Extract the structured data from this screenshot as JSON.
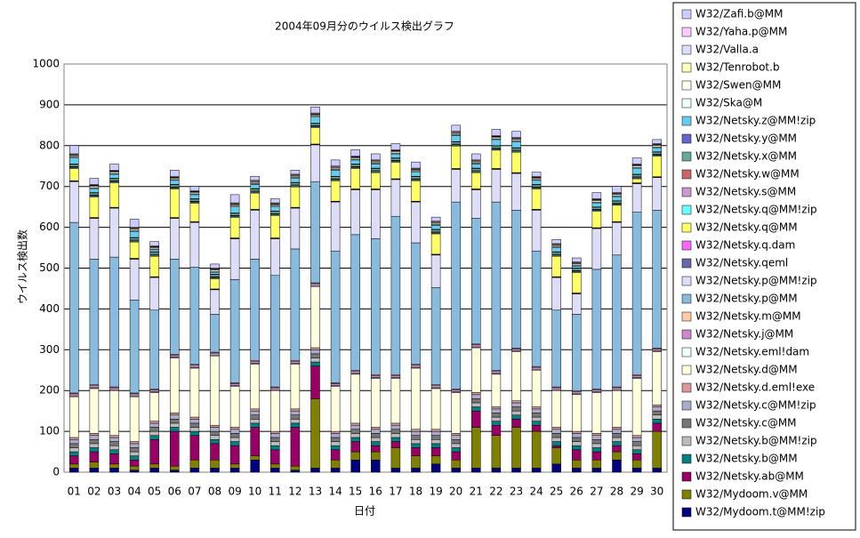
{
  "chart_data": {
    "type": "stacked_bar",
    "title": "2004年09月分のウイルス検出グラフ",
    "x_label": "日付",
    "y_label": "ウイルス検出数",
    "categories": [
      "01",
      "02",
      "03",
      "04",
      "05",
      "06",
      "07",
      "08",
      "09",
      "10",
      "11",
      "12",
      "13",
      "14",
      "15",
      "16",
      "17",
      "18",
      "19",
      "20",
      "21",
      "22",
      "23",
      "24",
      "25",
      "26",
      "27",
      "28",
      "29",
      "30"
    ],
    "ylim": [
      0,
      1000
    ],
    "yticks": [
      0,
      100,
      200,
      300,
      400,
      500,
      600,
      700,
      800,
      900,
      1000
    ],
    "grid": true,
    "series": [
      {
        "name": "W32/Zafi.b@MM",
        "color": "#ccccff",
        "values": [
          20,
          15,
          15,
          20,
          10,
          15,
          10,
          10,
          20,
          10,
          10,
          10,
          15,
          15,
          15,
          15,
          15,
          15,
          10,
          15,
          15,
          15,
          15,
          10,
          10,
          10,
          15,
          15,
          15,
          10
        ]
      },
      {
        "name": "W32/Yaha.p@MM",
        "color": "#ffccff",
        "values": [
          2,
          2,
          2,
          2,
          2,
          2,
          2,
          2,
          2,
          2,
          2,
          2,
          2,
          2,
          2,
          2,
          2,
          2,
          2,
          2,
          2,
          2,
          2,
          2,
          2,
          2,
          2,
          2,
          2,
          2
        ]
      },
      {
        "name": "W32/Valla.a",
        "color": "#ddddff",
        "values": [
          1,
          1,
          1,
          1,
          1,
          1,
          1,
          1,
          1,
          1,
          1,
          1,
          1,
          1,
          1,
          1,
          1,
          1,
          1,
          1,
          1,
          1,
          1,
          1,
          1,
          1,
          1,
          1,
          1,
          1
        ]
      },
      {
        "name": "W32/Tenrobot.b",
        "color": "#ffffbb",
        "values": [
          2,
          2,
          2,
          2,
          2,
          2,
          2,
          2,
          2,
          2,
          2,
          2,
          2,
          2,
          2,
          2,
          2,
          2,
          2,
          2,
          2,
          2,
          2,
          2,
          2,
          2,
          2,
          2,
          2,
          2
        ]
      },
      {
        "name": "W32/Swen@MM",
        "color": "#ffffee",
        "values": [
          3,
          3,
          3,
          3,
          3,
          3,
          3,
          3,
          3,
          3,
          3,
          3,
          3,
          3,
          3,
          3,
          3,
          3,
          3,
          3,
          3,
          3,
          3,
          3,
          3,
          3,
          3,
          3,
          3,
          3
        ]
      },
      {
        "name": "W32/Ska@M",
        "color": "#eeffff",
        "values": [
          2,
          2,
          2,
          2,
          2,
          2,
          2,
          2,
          2,
          2,
          2,
          2,
          2,
          2,
          2,
          2,
          2,
          2,
          2,
          2,
          2,
          2,
          2,
          2,
          2,
          2,
          2,
          2,
          2,
          2
        ]
      },
      {
        "name": "W32/Netsky.z@MM!zip",
        "color": "#66ccee",
        "values": [
          15,
          10,
          10,
          15,
          5,
          10,
          10,
          5,
          15,
          10,
          10,
          10,
          15,
          15,
          10,
          10,
          10,
          10,
          10,
          15,
          10,
          15,
          15,
          10,
          10,
          5,
          10,
          10,
          15,
          10
        ]
      },
      {
        "name": "W32/Netsky.y@MM",
        "color": "#6666cc",
        "values": [
          1,
          1,
          1,
          1,
          1,
          1,
          1,
          1,
          1,
          1,
          1,
          1,
          1,
          1,
          1,
          1,
          1,
          1,
          1,
          1,
          1,
          1,
          1,
          1,
          1,
          1,
          1,
          1,
          1,
          1
        ]
      },
      {
        "name": "W32/Netsky.x@MM",
        "color": "#66aa99",
        "values": [
          5,
          5,
          5,
          5,
          5,
          5,
          5,
          5,
          5,
          5,
          5,
          5,
          5,
          5,
          5,
          5,
          5,
          5,
          5,
          5,
          5,
          5,
          5,
          5,
          5,
          5,
          5,
          5,
          5,
          5
        ]
      },
      {
        "name": "W32/Netsky.w@MM",
        "color": "#cc6666",
        "values": [
          1,
          1,
          1,
          1,
          1,
          1,
          1,
          1,
          1,
          1,
          1,
          1,
          1,
          1,
          1,
          1,
          1,
          1,
          1,
          1,
          1,
          1,
          1,
          1,
          1,
          1,
          1,
          1,
          1,
          1
        ]
      },
      {
        "name": "W32/Netsky.s@MM",
        "color": "#cc99cc",
        "values": [
          2,
          2,
          2,
          2,
          2,
          2,
          2,
          2,
          2,
          2,
          2,
          2,
          2,
          2,
          2,
          2,
          2,
          2,
          2,
          2,
          2,
          2,
          2,
          2,
          2,
          2,
          2,
          2,
          2,
          2
        ]
      },
      {
        "name": "W32/Netsky.q@MM!zip",
        "color": "#66ffff",
        "values": [
          2,
          2,
          2,
          2,
          2,
          2,
          2,
          2,
          2,
          2,
          2,
          2,
          2,
          2,
          2,
          2,
          2,
          2,
          2,
          2,
          2,
          2,
          2,
          2,
          2,
          2,
          2,
          2,
          2,
          2
        ]
      },
      {
        "name": "W32/Netsky.q@MM",
        "color": "#ffff66",
        "values": [
          30,
          50,
          60,
          40,
          50,
          70,
          45,
          25,
          50,
          40,
          55,
          50,
          40,
          50,
          50,
          40,
          40,
          50,
          50,
          55,
          40,
          45,
          50,
          50,
          50,
          50,
          40,
          40,
          10,
          50
        ]
      },
      {
        "name": "W32/Netsky.q.dam",
        "color": "#ff66ff",
        "values": [
          1,
          1,
          1,
          1,
          1,
          1,
          1,
          1,
          1,
          1,
          1,
          1,
          1,
          1,
          1,
          1,
          1,
          1,
          1,
          1,
          1,
          1,
          1,
          1,
          1,
          1,
          1,
          1,
          1,
          1
        ]
      },
      {
        "name": "W32/Netsky.qeml",
        "color": "#6666aa",
        "values": [
          1,
          1,
          1,
          1,
          1,
          1,
          1,
          1,
          1,
          1,
          1,
          1,
          1,
          1,
          1,
          1,
          1,
          1,
          1,
          1,
          1,
          1,
          1,
          1,
          1,
          1,
          1,
          1,
          1,
          1
        ]
      },
      {
        "name": "W32/Netsky.p@MM!zip",
        "color": "#ddddf8",
        "values": [
          100,
          100,
          120,
          100,
          80,
          100,
          110,
          60,
          100,
          120,
          90,
          100,
          90,
          120,
          110,
          120,
          90,
          100,
          80,
          80,
          70,
          80,
          90,
          100,
          80,
          50,
          100,
          80,
          70,
          80
        ]
      },
      {
        "name": "W32/Netsky.p@MM",
        "color": "#88bbdd",
        "values": [
          418,
          308,
          318,
          228,
          193,
          233,
          238,
          93,
          253,
          248,
          273,
          273,
          248,
          323,
          333,
          333,
          388,
          298,
          238,
          458,
          308,
          413,
          338,
          283,
          188,
          188,
          293,
          323,
          398,
          338
        ]
      },
      {
        "name": "W32/Netsky.m@MM",
        "color": "#ffccaa",
        "values": [
          2,
          2,
          2,
          2,
          2,
          2,
          2,
          2,
          2,
          2,
          2,
          2,
          2,
          2,
          2,
          2,
          2,
          2,
          2,
          2,
          2,
          2,
          2,
          2,
          2,
          2,
          2,
          2,
          2,
          2
        ]
      },
      {
        "name": "W32/Netsky.j@MM",
        "color": "#cc88cc",
        "values": [
          5,
          5,
          5,
          5,
          5,
          5,
          5,
          5,
          5,
          5,
          5,
          5,
          5,
          5,
          5,
          5,
          5,
          5,
          5,
          5,
          5,
          5,
          5,
          5,
          5,
          5,
          5,
          5,
          5,
          5
        ]
      },
      {
        "name": "W32/Netsky.eml!dam",
        "color": "#eeffff",
        "values": [
          2,
          2,
          2,
          2,
          2,
          2,
          2,
          2,
          2,
          2,
          2,
          2,
          2,
          2,
          2,
          2,
          2,
          2,
          2,
          2,
          2,
          2,
          2,
          2,
          2,
          2,
          2,
          2,
          2,
          2
        ]
      },
      {
        "name": "W32/Netsky.d@MM",
        "color": "#ffffdd",
        "values": [
          100,
          110,
          110,
          110,
          70,
          135,
          120,
          170,
          100,
          110,
          100,
          110,
          150,
          110,
          120,
          120,
          110,
          150,
          100,
          100,
          110,
          80,
          120,
          90,
          90,
          90,
          100,
          90,
          140,
          130
        ]
      },
      {
        "name": "W32/Netsky.d.eml!exe",
        "color": "#dd9999",
        "values": [
          5,
          5,
          5,
          5,
          5,
          5,
          5,
          5,
          5,
          5,
          5,
          5,
          5,
          5,
          5,
          5,
          5,
          5,
          5,
          5,
          5,
          5,
          5,
          5,
          5,
          5,
          5,
          5,
          5,
          5
        ]
      },
      {
        "name": "W32/Netsky.c@MM!zip",
        "color": "#aaaacc",
        "values": [
          10,
          10,
          10,
          10,
          10,
          10,
          10,
          10,
          10,
          10,
          10,
          10,
          10,
          10,
          10,
          10,
          10,
          10,
          10,
          10,
          10,
          10,
          10,
          10,
          10,
          10,
          10,
          10,
          10,
          10
        ]
      },
      {
        "name": "W32/Netsky.c@MM",
        "color": "#777777",
        "values": [
          10,
          10,
          10,
          10,
          10,
          10,
          10,
          10,
          10,
          10,
          10,
          10,
          10,
          10,
          10,
          10,
          10,
          10,
          10,
          10,
          10,
          10,
          10,
          10,
          10,
          10,
          10,
          10,
          10,
          10
        ]
      },
      {
        "name": "W32/Netsky.b@MM!zip",
        "color": "#bbbbbb",
        "values": [
          10,
          10,
          10,
          10,
          10,
          10,
          10,
          10,
          10,
          10,
          10,
          10,
          10,
          10,
          10,
          10,
          10,
          10,
          10,
          10,
          10,
          10,
          10,
          10,
          10,
          10,
          10,
          10,
          10,
          10
        ]
      },
      {
        "name": "W32/Netsky.b@MM",
        "color": "#008080",
        "values": [
          10,
          10,
          10,
          10,
          10,
          10,
          10,
          10,
          10,
          10,
          10,
          10,
          10,
          10,
          10,
          10,
          10,
          10,
          10,
          10,
          10,
          10,
          10,
          10,
          10,
          10,
          10,
          10,
          10,
          10
        ]
      },
      {
        "name": "W32/Netsky.ab@MM",
        "color": "#990066",
        "values": [
          20,
          25,
          25,
          15,
          60,
          85,
          60,
          40,
          45,
          70,
          35,
          95,
          80,
          25,
          25,
          15,
          15,
          20,
          20,
          20,
          40,
          25,
          20,
          15,
          5,
          25,
          20,
          15,
          15,
          20
        ]
      },
      {
        "name": "W32/Mydoom.v@MM",
        "color": "#808000",
        "values": [
          10,
          15,
          10,
          10,
          10,
          10,
          20,
          20,
          10,
          10,
          10,
          10,
          170,
          20,
          20,
          20,
          50,
          30,
          20,
          20,
          100,
          80,
          100,
          90,
          40,
          20,
          20,
          20,
          20,
          90
        ]
      },
      {
        "name": "W32/Mydoom.t@MM!zip",
        "color": "#000080",
        "values": [
          10,
          10,
          10,
          5,
          10,
          5,
          10,
          10,
          10,
          30,
          10,
          5,
          10,
          10,
          30,
          30,
          10,
          10,
          20,
          10,
          10,
          10,
          10,
          10,
          20,
          10,
          10,
          30,
          10,
          10
        ]
      }
    ]
  }
}
